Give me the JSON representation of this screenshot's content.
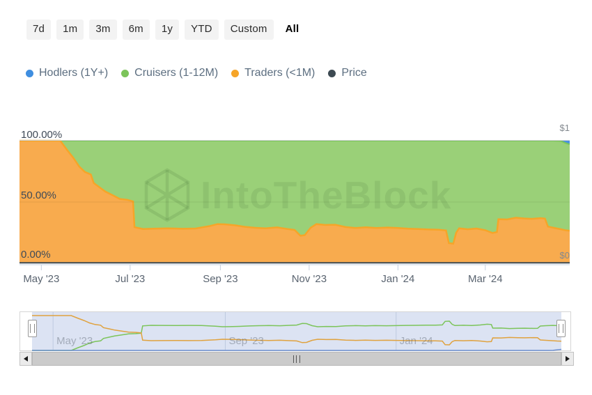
{
  "range_buttons": {
    "items": [
      {
        "label": "7d",
        "active": false
      },
      {
        "label": "1m",
        "active": false
      },
      {
        "label": "3m",
        "active": false
      },
      {
        "label": "6m",
        "active": false
      },
      {
        "label": "1y",
        "active": false
      },
      {
        "label": "YTD",
        "active": false
      },
      {
        "label": "Custom",
        "active": false
      },
      {
        "label": "All",
        "active": true
      }
    ]
  },
  "legend": {
    "items": [
      {
        "label": "Hodlers (1Y+)",
        "color": "#3f8ee0"
      },
      {
        "label": "Cruisers (1-12M)",
        "color": "#7cc45a"
      },
      {
        "label": "Traders (<1M)",
        "color": "#f6a528"
      },
      {
        "label": "Price",
        "color": "#3d4a52"
      }
    ]
  },
  "watermark": {
    "text": "IntoTheBlock"
  },
  "chart_data": {
    "type": "area",
    "stacked_percent": true,
    "x_range": [
      "2023-04-16",
      "2024-04-28"
    ],
    "y_axis_left": {
      "tick_labels": [
        "100.00%",
        "50.00%",
        "0.00%"
      ],
      "min": 0,
      "max": 100,
      "unit": "%"
    },
    "y_axis_right": {
      "tick_labels": [
        "$1",
        "$0"
      ],
      "min": 0,
      "max": 1,
      "unit": "$"
    },
    "x_ticks": [
      {
        "label": "May '23",
        "date": "2023-05-01"
      },
      {
        "label": "Jul '23",
        "date": "2023-07-01"
      },
      {
        "label": "Sep '23",
        "date": "2023-09-01"
      },
      {
        "label": "Nov '23",
        "date": "2023-11-01"
      },
      {
        "label": "Jan '24",
        "date": "2024-01-01"
      },
      {
        "label": "Mar '24",
        "date": "2024-03-01"
      }
    ],
    "navigator_labels": [
      {
        "label": "May '23",
        "date": "2023-05-01"
      },
      {
        "label": "Sep '23",
        "date": "2023-09-01"
      },
      {
        "label": "Jan '24",
        "date": "2024-01-01"
      }
    ],
    "series": [
      {
        "name": "Hodlers (1Y+)",
        "color": "#3f8ee0",
        "area_color": "#4a90e2",
        "unit": "%",
        "points": [
          [
            "2023-04-16",
            0
          ],
          [
            "2024-04-19",
            0
          ],
          [
            "2024-04-22",
            0.3
          ],
          [
            "2024-04-25",
            1.8
          ],
          [
            "2024-04-28",
            3
          ]
        ]
      },
      {
        "name": "Cruisers (1-12M)",
        "color": "#7cc45a",
        "area_color": "#9ad078",
        "unit": "%",
        "points": [
          [
            "2023-04-16",
            0
          ],
          [
            "2023-05-14",
            0
          ],
          [
            "2023-05-19",
            8
          ],
          [
            "2023-05-23",
            14
          ],
          [
            "2023-05-27",
            21
          ],
          [
            "2023-05-31",
            25.5
          ],
          [
            "2023-06-04",
            27.5
          ],
          [
            "2023-06-06",
            34.5
          ],
          [
            "2023-06-10",
            38
          ],
          [
            "2023-06-14",
            41.5
          ],
          [
            "2023-06-19",
            44.5
          ],
          [
            "2023-06-24",
            47.5
          ],
          [
            "2023-06-29",
            48.2
          ],
          [
            "2023-07-03",
            49.5
          ],
          [
            "2023-07-04",
            70.5
          ],
          [
            "2023-07-10",
            72
          ],
          [
            "2023-07-17",
            71.7
          ],
          [
            "2023-07-27",
            71.4
          ],
          [
            "2023-08-06",
            71.8
          ],
          [
            "2023-08-15",
            71.6
          ],
          [
            "2023-08-25",
            69.5
          ],
          [
            "2023-08-30",
            68
          ],
          [
            "2023-09-04",
            68.2
          ],
          [
            "2023-09-11",
            69
          ],
          [
            "2023-09-18",
            70.2
          ],
          [
            "2023-09-25",
            71
          ],
          [
            "2023-10-02",
            71.4
          ],
          [
            "2023-10-10",
            70.7
          ],
          [
            "2023-10-17",
            72
          ],
          [
            "2023-10-22",
            72.8
          ],
          [
            "2023-10-26",
            77.5
          ],
          [
            "2023-10-29",
            77
          ],
          [
            "2023-11-02",
            71
          ],
          [
            "2023-11-06",
            68
          ],
          [
            "2023-11-12",
            68.7
          ],
          [
            "2023-11-19",
            68.5
          ],
          [
            "2023-11-26",
            70.4
          ],
          [
            "2023-12-03",
            71.2
          ],
          [
            "2023-12-10",
            70.6
          ],
          [
            "2023-12-17",
            71.2
          ],
          [
            "2023-12-25",
            70.8
          ],
          [
            "2024-01-01",
            71.2
          ],
          [
            "2024-01-08",
            71.7
          ],
          [
            "2024-01-15",
            72
          ],
          [
            "2024-01-22",
            72.4
          ],
          [
            "2024-01-29",
            72.6
          ],
          [
            "2024-02-03",
            73.2
          ],
          [
            "2024-02-05",
            83.5
          ],
          [
            "2024-02-08",
            84
          ],
          [
            "2024-02-10",
            75
          ],
          [
            "2024-02-12",
            71.4
          ],
          [
            "2024-02-18",
            72.2
          ],
          [
            "2024-02-24",
            71.6
          ],
          [
            "2024-03-01",
            73
          ],
          [
            "2024-03-06",
            75.2
          ],
          [
            "2024-03-09",
            74.5
          ],
          [
            "2024-03-10",
            64
          ],
          [
            "2024-03-16",
            64.2
          ],
          [
            "2024-03-22",
            62.8
          ],
          [
            "2024-03-28",
            63.4
          ],
          [
            "2024-04-02",
            63.7
          ],
          [
            "2024-04-08",
            63.1
          ],
          [
            "2024-04-11",
            63.5
          ],
          [
            "2024-04-13",
            70
          ],
          [
            "2024-04-17",
            71
          ],
          [
            "2024-04-22",
            71.9
          ],
          [
            "2024-04-25",
            71.2
          ],
          [
            "2024-04-28",
            70.4
          ]
        ]
      },
      {
        "name": "Traders (<1M)",
        "color": "#f6a528",
        "area_color": "#f8ab4e",
        "unit": "%",
        "points": [
          [
            "2023-04-16",
            100
          ],
          [
            "2023-05-14",
            100
          ],
          [
            "2023-05-19",
            92
          ],
          [
            "2023-05-23",
            86
          ],
          [
            "2023-05-27",
            79
          ],
          [
            "2023-05-31",
            74.5
          ],
          [
            "2023-06-04",
            72.5
          ],
          [
            "2023-06-06",
            65.5
          ],
          [
            "2023-06-10",
            62
          ],
          [
            "2023-06-14",
            58.5
          ],
          [
            "2023-06-19",
            55.5
          ],
          [
            "2023-06-24",
            52.5
          ],
          [
            "2023-06-29",
            51.8
          ],
          [
            "2023-07-03",
            50.5
          ],
          [
            "2023-07-04",
            29.5
          ],
          [
            "2023-07-10",
            28
          ],
          [
            "2023-07-17",
            28.3
          ],
          [
            "2023-07-27",
            28.6
          ],
          [
            "2023-08-06",
            28.2
          ],
          [
            "2023-08-15",
            28.4
          ],
          [
            "2023-08-25",
            30.5
          ],
          [
            "2023-08-30",
            32
          ],
          [
            "2023-09-04",
            31.8
          ],
          [
            "2023-09-11",
            31
          ],
          [
            "2023-09-18",
            29.8
          ],
          [
            "2023-09-25",
            29
          ],
          [
            "2023-10-02",
            28.6
          ],
          [
            "2023-10-10",
            29.3
          ],
          [
            "2023-10-17",
            28
          ],
          [
            "2023-10-22",
            27.2
          ],
          [
            "2023-10-26",
            22.5
          ],
          [
            "2023-10-29",
            23
          ],
          [
            "2023-11-02",
            29
          ],
          [
            "2023-11-06",
            32
          ],
          [
            "2023-11-12",
            31.3
          ],
          [
            "2023-11-19",
            31.5
          ],
          [
            "2023-11-26",
            29.6
          ],
          [
            "2023-12-03",
            28.8
          ],
          [
            "2023-12-10",
            29.4
          ],
          [
            "2023-12-17",
            28.8
          ],
          [
            "2023-12-25",
            29.2
          ],
          [
            "2024-01-01",
            28.8
          ],
          [
            "2024-01-08",
            28.3
          ],
          [
            "2024-01-15",
            28
          ],
          [
            "2024-01-22",
            27.6
          ],
          [
            "2024-01-29",
            27.4
          ],
          [
            "2024-02-03",
            26.8
          ],
          [
            "2024-02-05",
            16.5
          ],
          [
            "2024-02-08",
            16
          ],
          [
            "2024-02-10",
            25
          ],
          [
            "2024-02-12",
            28.6
          ],
          [
            "2024-02-18",
            27.8
          ],
          [
            "2024-02-24",
            28.4
          ],
          [
            "2024-03-01",
            27
          ],
          [
            "2024-03-06",
            24.8
          ],
          [
            "2024-03-09",
            25.5
          ],
          [
            "2024-03-10",
            36
          ],
          [
            "2024-03-16",
            35.8
          ],
          [
            "2024-03-22",
            37.2
          ],
          [
            "2024-03-28",
            36.6
          ],
          [
            "2024-04-02",
            36.3
          ],
          [
            "2024-04-08",
            36.9
          ],
          [
            "2024-04-11",
            36.5
          ],
          [
            "2024-04-13",
            30
          ],
          [
            "2024-04-17",
            29
          ],
          [
            "2024-04-22",
            27.8
          ],
          [
            "2024-04-25",
            27
          ],
          [
            "2024-04-28",
            26.6
          ]
        ]
      },
      {
        "name": "Price",
        "color": "#3d4a52",
        "unit": "$",
        "points": [
          [
            "2023-04-16",
            0.004
          ],
          [
            "2024-04-28",
            0.004
          ]
        ]
      }
    ]
  }
}
